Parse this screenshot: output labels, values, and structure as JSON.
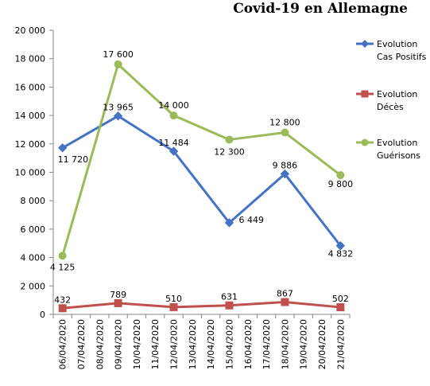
{
  "chart_data": {
    "type": "line",
    "title": "Covid-19 en Allemagne",
    "categories": [
      "06/04/2020",
      "07/04/2020",
      "08/04/2020",
      "09/04/2020",
      "10/04/2020",
      "11/04/2020",
      "12/04/2020",
      "13/04/2020",
      "14/04/2020",
      "15/04/2020",
      "16/04/2020",
      "17/04/2020",
      "18/04/2020",
      "19/04/2020",
      "20/04/2020",
      "21/04/2020"
    ],
    "ylim": [
      0,
      20000
    ],
    "yticks": [
      0,
      2000,
      4000,
      6000,
      8000,
      10000,
      12000,
      14000,
      16000,
      18000,
      20000
    ],
    "ytick_labels": [
      "0",
      "2 000",
      "4 000",
      "6 000",
      "8 000",
      "10 000",
      "12 000",
      "14 000",
      "16 000",
      "18 000",
      "20 000"
    ],
    "grid": false,
    "legend_position": "right",
    "series": [
      {
        "name_line1": "Evolution",
        "name_line2": "Cas Positifs",
        "color": "#4472c4",
        "marker": "diamond",
        "points": [
          {
            "x": "06/04/2020",
            "y": 11720,
            "label": "11 720"
          },
          {
            "x": "09/04/2020",
            "y": 13965,
            "label": "13 965"
          },
          {
            "x": "12/04/2020",
            "y": 11484,
            "label": "11 484"
          },
          {
            "x": "15/04/2020",
            "y": 6449,
            "label": "6 449"
          },
          {
            "x": "18/04/2020",
            "y": 9886,
            "label": "9 886"
          },
          {
            "x": "21/04/2020",
            "y": 4832,
            "label": "4 832"
          }
        ]
      },
      {
        "name_line1": "Evolution",
        "name_line2": "Décès",
        "color": "#c0504d",
        "marker": "square",
        "points": [
          {
            "x": "06/04/2020",
            "y": 432,
            "label": "432"
          },
          {
            "x": "09/04/2020",
            "y": 789,
            "label": "789"
          },
          {
            "x": "12/04/2020",
            "y": 510,
            "label": "510"
          },
          {
            "x": "15/04/2020",
            "y": 631,
            "label": "631"
          },
          {
            "x": "18/04/2020",
            "y": 867,
            "label": "867"
          },
          {
            "x": "21/04/2020",
            "y": 502,
            "label": "502"
          }
        ]
      },
      {
        "name_line1": "Evolution",
        "name_line2": "Guérisons",
        "color": "#9bbb59",
        "marker": "circle",
        "points": [
          {
            "x": "06/04/2020",
            "y": 4125,
            "label": "4 125"
          },
          {
            "x": "09/04/2020",
            "y": 17600,
            "label": "17 600"
          },
          {
            "x": "12/04/2020",
            "y": 14000,
            "label": "14 000"
          },
          {
            "x": "15/04/2020",
            "y": 12300,
            "label": "12 300"
          },
          {
            "x": "18/04/2020",
            "y": 12800,
            "label": "12 800"
          },
          {
            "x": "21/04/2020",
            "y": 9800,
            "label": "9 800"
          }
        ]
      }
    ]
  }
}
